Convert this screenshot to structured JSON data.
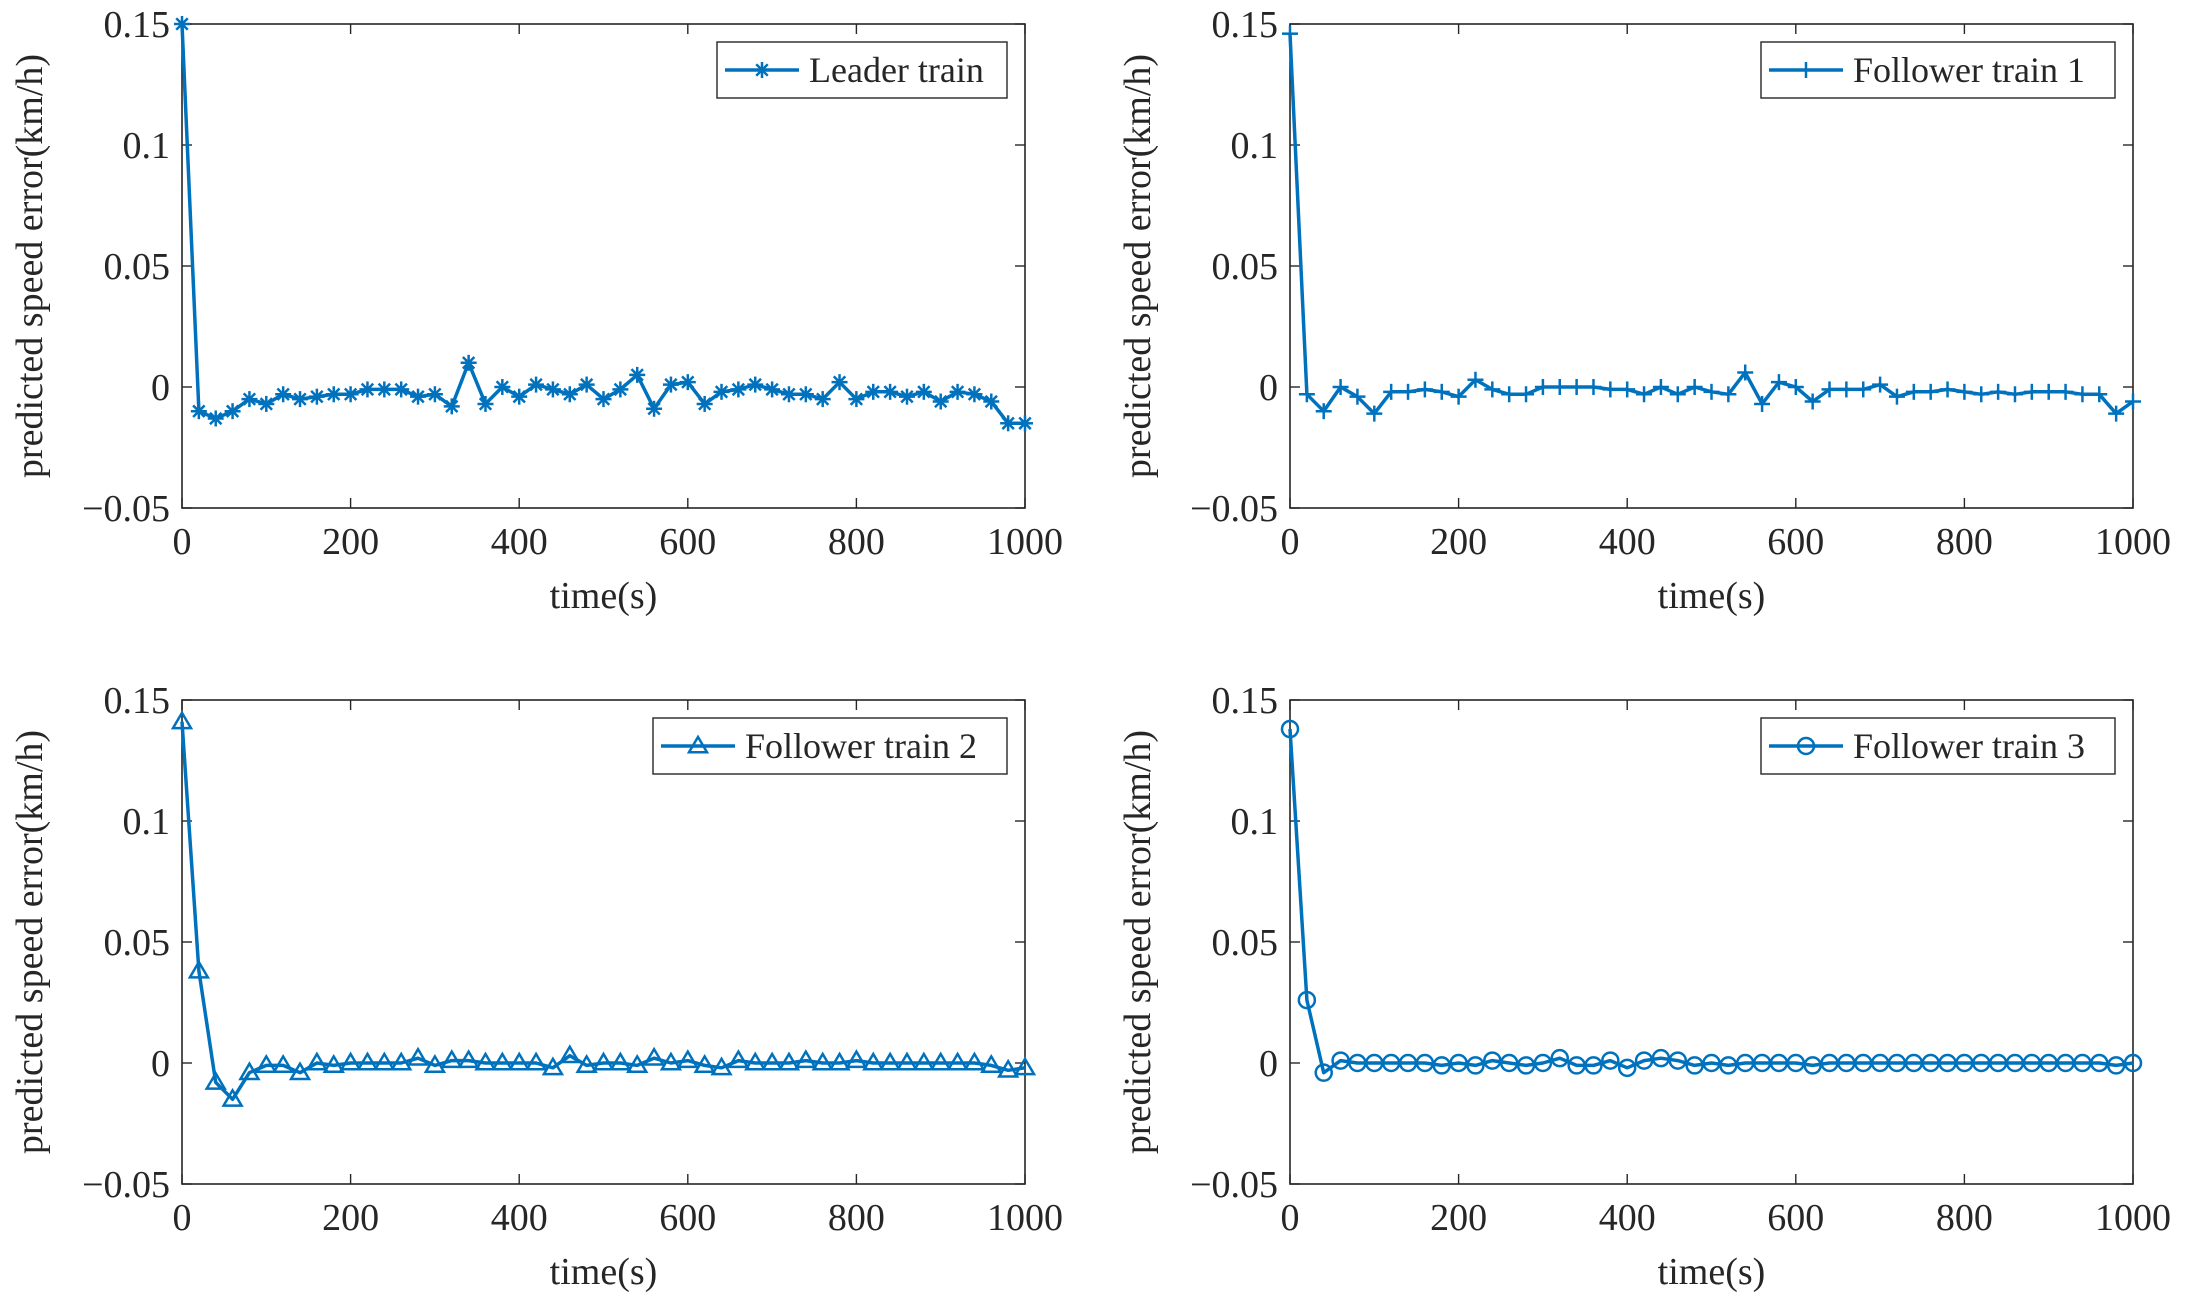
{
  "chart_data": [
    {
      "type": "line",
      "marker": "asterisk",
      "legend": "Leader train",
      "legend_loc": "top-right",
      "xlabel": "time(s)",
      "ylabel": "predicted speed error(km/h)",
      "xlim": [
        0,
        1000
      ],
      "ylim": [
        -0.05,
        0.15
      ],
      "xticks": [
        0,
        200,
        400,
        600,
        800,
        1000
      ],
      "xtick_labels": [
        "0",
        "200",
        "400",
        "600",
        "800",
        "1000"
      ],
      "yticks": [
        -0.05,
        0,
        0.05,
        0.1,
        0.15
      ],
      "ytick_labels": [
        "−0.05",
        "0",
        "0.05",
        "0.1",
        "0.15"
      ],
      "x": [
        0,
        20,
        40,
        60,
        80,
        100,
        120,
        140,
        160,
        180,
        200,
        220,
        240,
        260,
        280,
        300,
        320,
        340,
        360,
        380,
        400,
        420,
        440,
        460,
        480,
        500,
        520,
        540,
        560,
        580,
        600,
        620,
        640,
        660,
        680,
        700,
        720,
        740,
        760,
        780,
        800,
        820,
        840,
        860,
        880,
        900,
        920,
        940,
        960,
        980,
        1000
      ],
      "y": [
        0.15,
        -0.01,
        -0.013,
        -0.01,
        -0.005,
        -0.007,
        -0.003,
        -0.005,
        -0.004,
        -0.003,
        -0.003,
        -0.001,
        -0.001,
        -0.001,
        -0.004,
        -0.003,
        -0.008,
        0.01,
        -0.007,
        0.0,
        -0.004,
        0.001,
        -0.001,
        -0.003,
        0.001,
        -0.005,
        -0.001,
        0.005,
        -0.009,
        0.001,
        0.002,
        -0.007,
        -0.002,
        -0.001,
        0.001,
        -0.001,
        -0.003,
        -0.003,
        -0.005,
        0.002,
        -0.005,
        -0.002,
        -0.002,
        -0.004,
        -0.002,
        -0.006,
        -0.002,
        -0.003,
        -0.006,
        -0.015,
        -0.015
      ]
    },
    {
      "type": "line",
      "marker": "plus",
      "legend": "Follower train 1",
      "legend_loc": "top-right",
      "xlabel": "time(s)",
      "ylabel": "predicted speed error(km/h)",
      "xlim": [
        0,
        1000
      ],
      "ylim": [
        -0.05,
        0.15
      ],
      "xticks": [
        0,
        200,
        400,
        600,
        800,
        1000
      ],
      "xtick_labels": [
        "0",
        "200",
        "400",
        "600",
        "800",
        "1000"
      ],
      "yticks": [
        -0.05,
        0,
        0.05,
        0.1,
        0.15
      ],
      "ytick_labels": [
        "−0.05",
        "0",
        "0.05",
        "0.1",
        "0.15"
      ],
      "x": [
        0,
        20,
        40,
        60,
        80,
        100,
        120,
        140,
        160,
        180,
        200,
        220,
        240,
        260,
        280,
        300,
        320,
        340,
        360,
        380,
        400,
        420,
        440,
        460,
        480,
        500,
        520,
        540,
        560,
        580,
        600,
        620,
        640,
        660,
        680,
        700,
        720,
        740,
        760,
        780,
        800,
        820,
        840,
        860,
        880,
        900,
        920,
        940,
        960,
        980,
        1000
      ],
      "y": [
        0.146,
        -0.003,
        -0.01,
        0.0,
        -0.004,
        -0.011,
        -0.002,
        -0.002,
        -0.001,
        -0.002,
        -0.004,
        0.003,
        -0.001,
        -0.003,
        -0.003,
        0.0,
        0.0,
        0.0,
        0.0,
        -0.001,
        -0.001,
        -0.003,
        0.0,
        -0.003,
        0.0,
        -0.002,
        -0.003,
        0.006,
        -0.007,
        0.002,
        0.0,
        -0.006,
        -0.001,
        -0.001,
        -0.001,
        0.001,
        -0.004,
        -0.002,
        -0.002,
        -0.001,
        -0.002,
        -0.003,
        -0.002,
        -0.003,
        -0.002,
        -0.002,
        -0.002,
        -0.003,
        -0.003,
        -0.011,
        -0.006
      ]
    },
    {
      "type": "line",
      "marker": "triangle",
      "legend": "Follower train 2",
      "legend_loc": "top-right",
      "xlabel": "time(s)",
      "ylabel": "predicted speed error(km/h)",
      "xlim": [
        0,
        1000
      ],
      "ylim": [
        -0.05,
        0.15
      ],
      "xticks": [
        0,
        200,
        400,
        600,
        800,
        1000
      ],
      "xtick_labels": [
        "0",
        "200",
        "400",
        "600",
        "800",
        "1000"
      ],
      "yticks": [
        -0.05,
        0,
        0.05,
        0.1,
        0.15
      ],
      "ytick_labels": [
        "−0.05",
        "0",
        "0.05",
        "0.1",
        "0.15"
      ],
      "x": [
        0,
        20,
        40,
        60,
        80,
        100,
        120,
        140,
        160,
        180,
        200,
        220,
        240,
        260,
        280,
        300,
        320,
        340,
        360,
        380,
        400,
        420,
        440,
        460,
        480,
        500,
        520,
        540,
        560,
        580,
        600,
        620,
        640,
        660,
        680,
        700,
        720,
        740,
        760,
        780,
        800,
        820,
        840,
        860,
        880,
        900,
        920,
        940,
        960,
        980,
        1000
      ],
      "y": [
        0.141,
        0.038,
        -0.008,
        -0.015,
        -0.004,
        -0.001,
        -0.001,
        -0.004,
        0.0,
        -0.001,
        0.0,
        0.0,
        0.0,
        0.0,
        0.002,
        -0.001,
        0.001,
        0.001,
        0.0,
        0.0,
        0.0,
        0.0,
        -0.002,
        0.003,
        -0.001,
        0.0,
        0.0,
        -0.001,
        0.002,
        0.0,
        0.001,
        -0.001,
        -0.002,
        0.001,
        0.0,
        0.0,
        0.0,
        0.001,
        0.0,
        0.0,
        0.001,
        0.0,
        0.0,
        0.0,
        0.0,
        0.0,
        0.0,
        0.0,
        -0.001,
        -0.003,
        -0.002
      ]
    },
    {
      "type": "line",
      "marker": "circle",
      "legend": "Follower train 3",
      "legend_loc": "top-right",
      "xlabel": "time(s)",
      "ylabel": "predicted speed error(km/h)",
      "xlim": [
        0,
        1000
      ],
      "ylim": [
        -0.05,
        0.15
      ],
      "xticks": [
        0,
        200,
        400,
        600,
        800,
        1000
      ],
      "xtick_labels": [
        "0",
        "200",
        "400",
        "600",
        "800",
        "1000"
      ],
      "yticks": [
        -0.05,
        0,
        0.05,
        0.1,
        0.15
      ],
      "ytick_labels": [
        "−0.05",
        "0",
        "0.05",
        "0.1",
        "0.15"
      ],
      "x": [
        0,
        20,
        40,
        60,
        80,
        100,
        120,
        140,
        160,
        180,
        200,
        220,
        240,
        260,
        280,
        300,
        320,
        340,
        360,
        380,
        400,
        420,
        440,
        460,
        480,
        500,
        520,
        540,
        560,
        580,
        600,
        620,
        640,
        660,
        680,
        700,
        720,
        740,
        760,
        780,
        800,
        820,
        840,
        860,
        880,
        900,
        920,
        940,
        960,
        980,
        1000
      ],
      "y": [
        0.138,
        0.026,
        -0.004,
        0.001,
        0.0,
        0.0,
        0.0,
        0.0,
        0.0,
        -0.001,
        0.0,
        -0.001,
        0.001,
        0.0,
        -0.001,
        0.0,
        0.002,
        -0.001,
        -0.001,
        0.001,
        -0.002,
        0.001,
        0.002,
        0.001,
        -0.001,
        0.0,
        -0.001,
        0.0,
        0.0,
        0.0,
        0.0,
        -0.001,
        0.0,
        0.0,
        0.0,
        0.0,
        0.0,
        0.0,
        0.0,
        0.0,
        0.0,
        0.0,
        0.0,
        0.0,
        0.0,
        0.0,
        0.0,
        0.0,
        0.0,
        -0.001,
        0.0
      ]
    }
  ],
  "colors": {
    "series": "#0072BD",
    "axis": "#262626",
    "background": "#ffffff"
  }
}
